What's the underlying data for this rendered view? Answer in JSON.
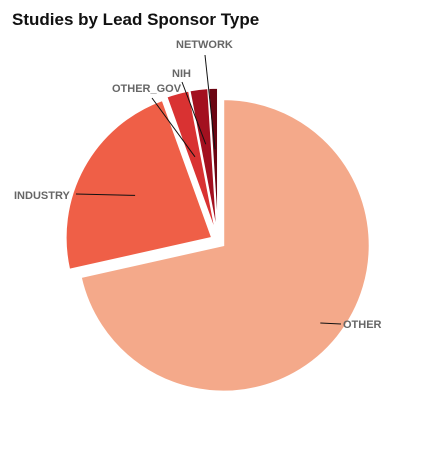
{
  "chart_data": {
    "type": "pie",
    "title": "Studies by Lead Sponsor Type",
    "categories": [
      "OTHER",
      "INDUSTRY",
      "OTHER_GOV",
      "NIH",
      "NETWORK"
    ],
    "values": [
      71.5,
      23.0,
      2.5,
      2.0,
      1.0
    ],
    "unit": "percent (estimated)",
    "colors": [
      "#f4a98a",
      "#ef5f47",
      "#d93232",
      "#a3101f",
      "#6b0512"
    ],
    "exploded": true,
    "legend": "none (labels with leader lines)"
  }
}
